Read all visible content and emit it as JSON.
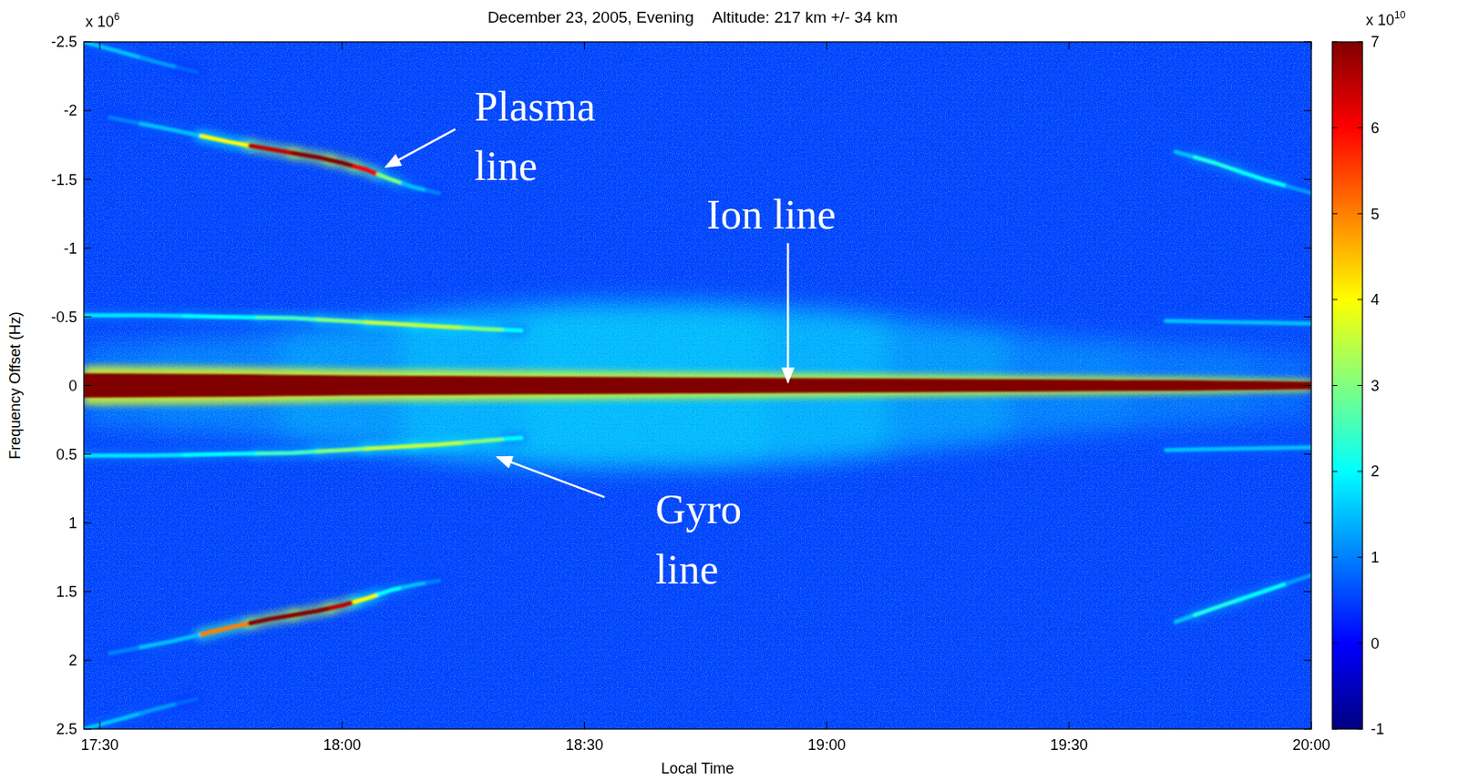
{
  "chart_data": {
    "type": "spectrogram",
    "title": "December 23, 2005, Evening",
    "subtitle": "Altitude: 217 km +/- 34 km",
    "x_label": "Local Time",
    "y_label": "Frequency Offset (Hz)",
    "y_offset_label": {
      "text": "x 10",
      "sup": "6"
    },
    "xlim": [
      17.467,
      20.0
    ],
    "xticks": [
      {
        "value": 17.5,
        "label": "17:30"
      },
      {
        "value": 18.0,
        "label": "18:00"
      },
      {
        "value": 18.5,
        "label": "18:30"
      },
      {
        "value": 19.0,
        "label": "19:00"
      },
      {
        "value": 19.5,
        "label": "19:30"
      },
      {
        "value": 20.0,
        "label": "20:00"
      }
    ],
    "ylim": [
      2.5,
      -2.5
    ],
    "yticks": [
      -2.5,
      -2,
      -1.5,
      -1,
      -0.5,
      0,
      0.5,
      1,
      1.5,
      2,
      2.5
    ],
    "noise_floor": 0.5,
    "colorbar": {
      "range": [
        -1,
        7
      ],
      "ticks": [
        -1,
        0,
        1,
        2,
        3,
        4,
        5,
        6,
        7
      ],
      "offset_label": {
        "text": "x 10",
        "sup": "10"
      }
    },
    "series": [
      {
        "line_style": "diffuse",
        "x": [
          17.467,
          17.75,
          18.0,
          18.25,
          18.5,
          18.75,
          19.0,
          19.25,
          19.5,
          19.75,
          20.0
        ],
        "values": [
          0,
          0,
          0,
          0,
          0,
          0,
          0,
          0,
          0,
          0,
          0
        ],
        "spread": [
          0.3,
          0.35,
          0.45,
          0.55,
          0.6,
          0.6,
          0.55,
          0.45,
          0.35,
          0.3,
          0.25
        ],
        "intensity": [
          0.9,
          1.0,
          1.2,
          1.4,
          1.5,
          1.5,
          1.4,
          1.2,
          1.0,
          0.9,
          0.8
        ]
      },
      {
        "x": [
          17.467,
          17.75,
          18.0,
          18.25,
          18.5,
          18.75,
          19.0,
          19.25,
          19.5,
          19.75,
          20.0
        ],
        "values": [
          0,
          0,
          0,
          0,
          0,
          0,
          0,
          0,
          0,
          0,
          0
        ],
        "spread": [
          0.085,
          0.08,
          0.07,
          0.065,
          0.06,
          0.055,
          0.05,
          0.045,
          0.04,
          0.035,
          0.025
        ],
        "intensity": [
          7,
          7,
          7,
          7,
          7,
          7,
          7,
          7,
          7,
          7,
          7
        ]
      },
      {
        "x": [
          17.467,
          17.6,
          17.75,
          17.9,
          18.0,
          18.1,
          18.2,
          18.3,
          18.37,
          19.0,
          19.7,
          19.85,
          20.0
        ],
        "values": [
          -0.51,
          -0.51,
          -0.5,
          -0.49,
          -0.47,
          -0.45,
          -0.43,
          -0.41,
          -0.4,
          null,
          -0.47,
          -0.46,
          -0.45
        ],
        "intensity": [
          1.8,
          1.8,
          2,
          2.5,
          3,
          3.5,
          3.5,
          3,
          2,
          null,
          1.5,
          1.5,
          1.5
        ]
      },
      {
        "x": [
          17.467,
          17.6,
          17.75,
          17.9,
          18.0,
          18.1,
          18.2,
          18.3,
          18.37,
          19.0,
          19.7,
          19.85,
          20.0
        ],
        "values": [
          0.51,
          0.51,
          0.5,
          0.49,
          0.47,
          0.45,
          0.43,
          0.4,
          0.38,
          null,
          0.47,
          0.46,
          0.45
        ],
        "intensity": [
          1.8,
          1.8,
          2,
          2.5,
          3,
          3.5,
          3.5,
          3,
          2,
          null,
          1.5,
          1.5,
          1.5
        ]
      },
      {
        "x": [
          17.52,
          17.65,
          17.77,
          17.85,
          17.95,
          18.0,
          18.05,
          18.1,
          18.15,
          18.2
        ],
        "values": [
          -1.95,
          -1.86,
          -1.77,
          -1.72,
          -1.66,
          -1.62,
          -1.57,
          -1.5,
          -1.44,
          -1.4
        ],
        "intensity": [
          1,
          1.5,
          4,
          6.5,
          7,
          7,
          6,
          3,
          1.5,
          1
        ]
      },
      {
        "x": [
          17.52,
          17.65,
          17.77,
          17.85,
          17.95,
          18.0,
          18.05,
          18.1,
          18.15,
          18.2
        ],
        "values": [
          1.95,
          1.86,
          1.76,
          1.7,
          1.64,
          1.6,
          1.55,
          1.49,
          1.45,
          1.42
        ],
        "intensity": [
          1,
          1.5,
          5,
          7,
          7,
          6.5,
          4,
          2,
          1.5,
          1
        ]
      },
      {
        "x": [
          17.467,
          17.55,
          17.62,
          17.7
        ],
        "values": [
          -2.5,
          -2.42,
          -2.35,
          -2.28
        ],
        "intensity": [
          1.5,
          1.5,
          1.2,
          0.8
        ]
      },
      {
        "x": [
          17.467,
          17.55,
          17.62,
          17.7
        ],
        "values": [
          2.5,
          2.42,
          2.35,
          2.28
        ],
        "intensity": [
          1.5,
          1.5,
          1.2,
          0.8
        ]
      },
      {
        "x": [
          19.72,
          19.8,
          19.9,
          20.0
        ],
        "values": [
          -1.7,
          -1.62,
          -1.5,
          -1.4
        ],
        "intensity": [
          1.5,
          2.2,
          2,
          1.2
        ]
      },
      {
        "x": [
          19.72,
          19.8,
          19.9,
          20.0
        ],
        "values": [
          1.72,
          1.62,
          1.5,
          1.38
        ],
        "intensity": [
          1.5,
          2.2,
          2,
          1.2
        ]
      }
    ],
    "annotations": [
      {
        "text": "Plasma line",
        "x": 18.09,
        "y": -1.59
      },
      {
        "text": "Ion line",
        "x": 18.92,
        "y": 0
      },
      {
        "text": "Gyro line",
        "x": 18.32,
        "y": 0.52
      }
    ]
  }
}
